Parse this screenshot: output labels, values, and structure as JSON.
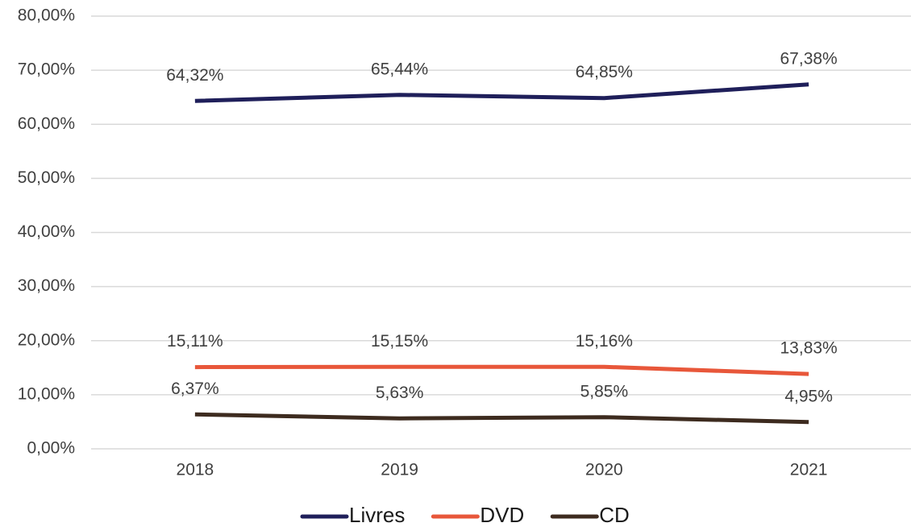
{
  "chart_data": {
    "type": "line",
    "categories": [
      "2018",
      "2019",
      "2020",
      "2021"
    ],
    "series": [
      {
        "name": "Livres",
        "color": "#1f1f5a",
        "values": [
          64.32,
          65.44,
          64.85,
          67.38
        ],
        "value_labels": [
          "64,32%",
          "65,44%",
          "64,85%",
          "67,38%"
        ]
      },
      {
        "name": "DVD",
        "color": "#e8573a",
        "values": [
          15.11,
          15.15,
          15.16,
          13.83
        ],
        "value_labels": [
          "15,11%",
          "15,15%",
          "15,16%",
          "13,83%"
        ]
      },
      {
        "name": "CD",
        "color": "#3d2b1f",
        "values": [
          6.37,
          5.63,
          5.85,
          4.95
        ],
        "value_labels": [
          "6,37%",
          "5,63%",
          "5,85%",
          "4,95%"
        ]
      }
    ],
    "ylim": [
      0,
      80
    ],
    "yticks": [
      {
        "value": 0,
        "label": "0,00%"
      },
      {
        "value": 10,
        "label": "10,00%"
      },
      {
        "value": 20,
        "label": "20,00%"
      },
      {
        "value": 30,
        "label": "30,00%"
      },
      {
        "value": 40,
        "label": "40,00%"
      },
      {
        "value": 50,
        "label": "50,00%"
      },
      {
        "value": 60,
        "label": "60,00%"
      },
      {
        "value": 70,
        "label": "70,00%"
      },
      {
        "value": 80,
        "label": "80,00%"
      }
    ],
    "grid": true,
    "legend": "bottom"
  }
}
